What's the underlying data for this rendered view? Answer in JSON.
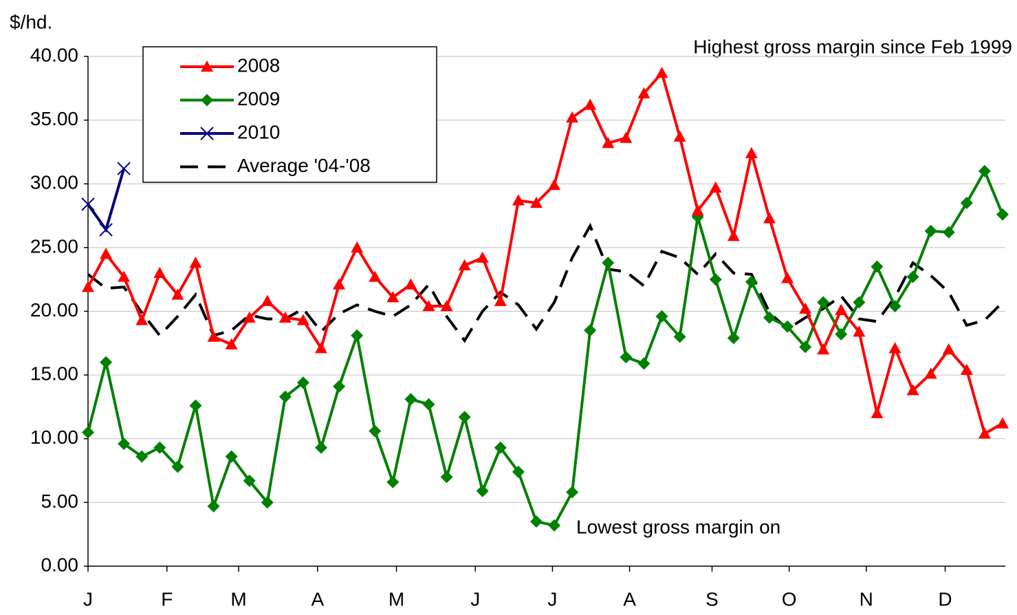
{
  "chart_data": {
    "type": "line",
    "y_label": "$/hd.",
    "annotations": [
      "Highest gross margin since Feb 1999",
      "Lowest gross margin on"
    ],
    "x": [
      1,
      2,
      3,
      4,
      5,
      6,
      7,
      8,
      9,
      10,
      11,
      12,
      13,
      14,
      15,
      16,
      17,
      18,
      19,
      20,
      21,
      22,
      23,
      24,
      25,
      26,
      27,
      28,
      29,
      30,
      31,
      32,
      33,
      34,
      35,
      36,
      37,
      38,
      39,
      40,
      41,
      42,
      43,
      44,
      45,
      46,
      47,
      48,
      49,
      50,
      51,
      52
    ],
    "xlim": [
      1,
      52
    ],
    "xticks": [
      {
        "value": 1,
        "label": "J"
      },
      {
        "value": 5.4,
        "label": "F"
      },
      {
        "value": 9.4,
        "label": "M"
      },
      {
        "value": 13.8,
        "label": "A"
      },
      {
        "value": 18.2,
        "label": "M"
      },
      {
        "value": 22.6,
        "label": "J"
      },
      {
        "value": 26.9,
        "label": "J"
      },
      {
        "value": 31.2,
        "label": "A"
      },
      {
        "value": 35.8,
        "label": "S"
      },
      {
        "value": 40.1,
        "label": "O"
      },
      {
        "value": 44.4,
        "label": "N"
      },
      {
        "value": 48.8,
        "label": "D"
      }
    ],
    "ylim": [
      0,
      40
    ],
    "yticks": [
      {
        "value": 0,
        "label": "0.00"
      },
      {
        "value": 5,
        "label": "5.00"
      },
      {
        "value": 10,
        "label": "10.00"
      },
      {
        "value": 15,
        "label": "15.00"
      },
      {
        "value": 20,
        "label": "20.00"
      },
      {
        "value": 25,
        "label": "25.00"
      },
      {
        "value": 30,
        "label": "30.00"
      },
      {
        "value": 35,
        "label": "35.00"
      },
      {
        "value": 40,
        "label": "40.00"
      }
    ],
    "grid": true,
    "legend": "upper left",
    "series": [
      {
        "name": "2008",
        "color": "#ff0000",
        "marker": "triangle",
        "values": [
          21.9,
          24.5,
          22.7,
          19.3,
          23.0,
          21.3,
          23.8,
          18.0,
          17.4,
          19.5,
          20.8,
          19.5,
          19.3,
          17.1,
          22.1,
          25.0,
          22.7,
          21.1,
          22.1,
          20.4,
          20.4,
          23.6,
          24.2,
          20.8,
          28.7,
          28.5,
          29.9,
          35.2,
          36.2,
          33.2,
          33.6,
          37.1,
          38.7,
          33.7,
          27.9,
          29.7,
          25.9,
          32.4,
          27.3,
          22.6,
          20.2,
          17.0,
          20.1,
          18.4,
          12.0,
          17.1,
          13.8,
          15.1,
          17.0,
          15.4,
          10.4,
          11.2
        ]
      },
      {
        "name": "2009",
        "color": "#008000",
        "marker": "diamond",
        "values": [
          10.5,
          16.0,
          9.6,
          8.6,
          9.3,
          7.8,
          12.6,
          4.7,
          8.6,
          6.7,
          5.0,
          13.3,
          14.4,
          9.3,
          14.1,
          18.1,
          10.6,
          6.6,
          13.1,
          12.7,
          7.0,
          11.7,
          5.9,
          9.3,
          7.4,
          3.5,
          3.2,
          5.8,
          18.5,
          23.8,
          16.4,
          15.9,
          19.6,
          18.0,
          27.4,
          22.5,
          17.9,
          22.3,
          19.5,
          18.8,
          17.2,
          20.7,
          18.2,
          20.7,
          23.5,
          20.4,
          22.7,
          26.3,
          26.2,
          28.5,
          31.0,
          27.6
        ]
      },
      {
        "name": "2010",
        "color": "#000080",
        "marker": "x",
        "values": [
          28.4,
          26.4,
          31.2,
          null,
          null,
          null,
          null,
          null,
          null,
          null,
          null,
          null,
          null,
          null,
          null,
          null,
          null,
          null,
          null,
          null,
          null,
          null,
          null,
          null,
          null,
          null,
          null,
          null,
          null,
          null,
          null,
          null,
          null,
          null,
          null,
          null,
          null,
          null,
          null,
          null,
          null,
          null,
          null,
          null,
          null,
          null,
          null,
          null,
          null,
          null,
          null,
          null
        ]
      },
      {
        "name": "Average '04-'08",
        "color": "#000000",
        "dashed": true,
        "values": [
          22.9,
          21.8,
          21.9,
          19.9,
          18.1,
          19.6,
          21.3,
          18.1,
          18.5,
          19.7,
          19.4,
          19.4,
          20.2,
          18.4,
          19.8,
          20.5,
          20.0,
          19.6,
          20.5,
          22.1,
          19.6,
          17.7,
          20.0,
          21.5,
          20.5,
          18.6,
          20.7,
          24.2,
          26.7,
          23.3,
          23.1,
          22.0,
          24.7,
          24.2,
          22.9,
          24.5,
          23.0,
          22.9,
          19.9,
          18.6,
          19.5,
          20.2,
          21.2,
          19.4,
          19.2,
          21.1,
          23.8,
          22.8,
          21.5,
          18.9,
          19.3,
          20.7
        ]
      }
    ]
  }
}
